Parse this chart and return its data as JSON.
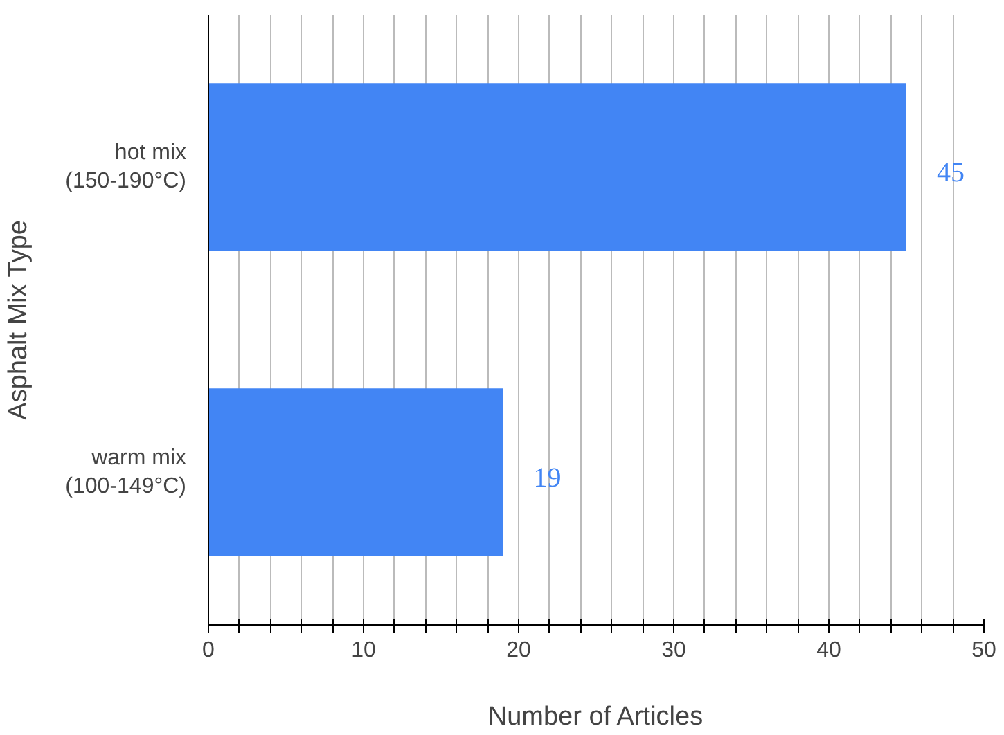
{
  "chart_data": {
    "type": "bar",
    "orientation": "horizontal",
    "categories": [
      "hot mix\n(150-190°C)",
      "warm mix\n(100-149°C)"
    ],
    "values": [
      45,
      19
    ],
    "color": "#4285f4",
    "data_labels": true,
    "xlabel": "Number of Articles",
    "ylabel": "Asphalt Mix Type",
    "xlim": [
      0,
      50
    ],
    "xticks": [
      0,
      {
        "value": 2,
        "label": null
      },
      {
        "value": 4,
        "label": null
      },
      {
        "value": 6,
        "label": null
      },
      {
        "value": 8,
        "label": null
      },
      10,
      {
        "value": 12,
        "label": null
      },
      {
        "value": 14,
        "label": null
      },
      {
        "value": 16,
        "label": null
      },
      {
        "value": 18,
        "label": null
      },
      20,
      {
        "value": 22,
        "label": null
      },
      {
        "value": 24,
        "label": null
      },
      {
        "value": 26,
        "label": null
      },
      {
        "value": 28,
        "label": null
      },
      30,
      {
        "value": 32,
        "label": null
      },
      {
        "value": 34,
        "label": null
      },
      {
        "value": 36,
        "label": null
      },
      {
        "value": 38,
        "label": null
      },
      40,
      {
        "value": 42,
        "label": null
      },
      {
        "value": 44,
        "label": null
      },
      {
        "value": 46,
        "label": null
      },
      {
        "value": 48,
        "label": null
      },
      50
    ],
    "grid": "x"
  }
}
